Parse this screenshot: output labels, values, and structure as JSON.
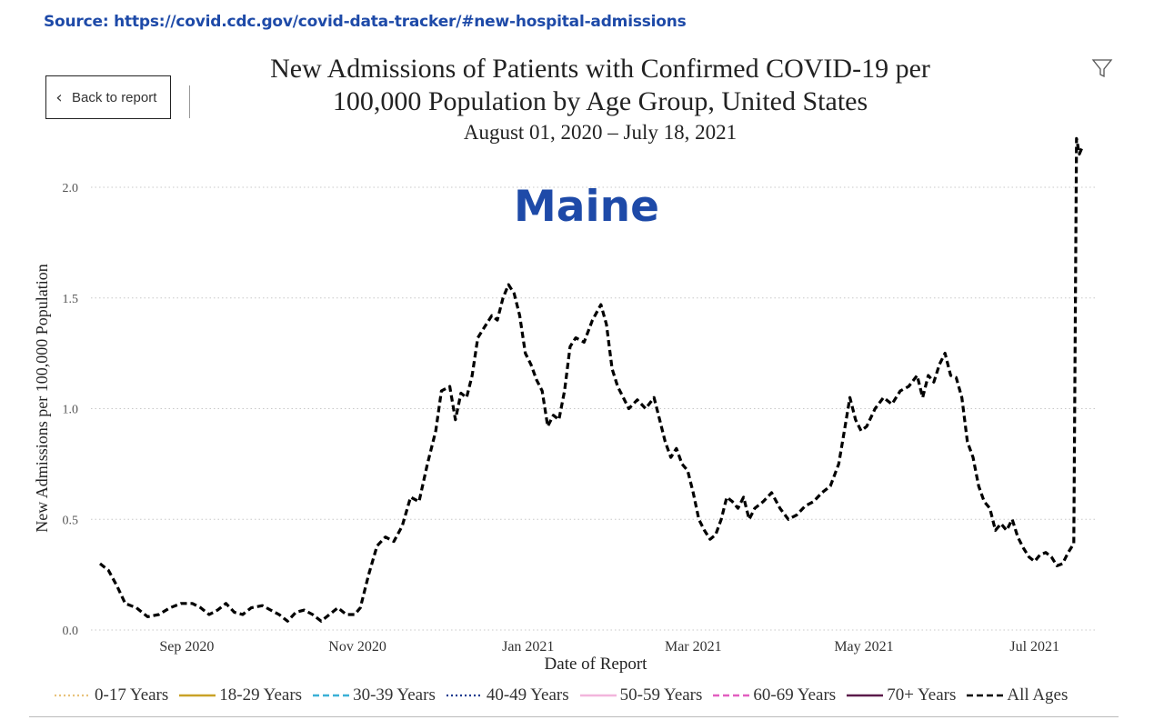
{
  "source_text": "Source: https://covid.cdc.gov/covid-data-tracker/#new-hospital-admissions",
  "back_button": {
    "label": "Back to report",
    "icon": "chevron-left-icon"
  },
  "filter_icon": "filter-icon",
  "state_label": "Maine",
  "chart_data": {
    "type": "line",
    "title_line1": "New Admissions of Patients with Confirmed COVID-19 per",
    "title_line2": "100,000 Population by Age Group, United States",
    "subtitle": "August 01, 2020 – July 18, 2021",
    "xlabel": "Date of Report",
    "ylabel": "New Admissions per 100,000 Population",
    "x_range": [
      "2020-08-01",
      "2021-07-18"
    ],
    "ylim": [
      0,
      2.2
    ],
    "yticks": [
      0.0,
      0.5,
      1.0,
      1.5,
      2.0
    ],
    "ytick_labels": [
      "0.0",
      "0.5",
      "1.0",
      "1.5",
      "2.0"
    ],
    "xticks": [
      "2020-09-01",
      "2020-11-01",
      "2021-01-01",
      "2021-03-01",
      "2021-05-01",
      "2021-07-01"
    ],
    "xtick_labels": [
      "Sep 2020",
      "Nov 2020",
      "Jan 2021",
      "Mar 2021",
      "May 2021",
      "Jul 2021"
    ],
    "grid": "horizontal-dotted",
    "legend_placement": "bottom",
    "legend": [
      {
        "name": "0-17 Years",
        "color": "#e8c27a",
        "dash": "dotted"
      },
      {
        "name": "18-29 Years",
        "color": "#c9a227",
        "dash": "solid"
      },
      {
        "name": "30-39 Years",
        "color": "#3bb0d6",
        "dash": "dashed"
      },
      {
        "name": "40-49 Years",
        "color": "#1b3a8f",
        "dash": "dotted"
      },
      {
        "name": "50-59 Years",
        "color": "#f2b5dc",
        "dash": "solid"
      },
      {
        "name": "60-69 Years",
        "color": "#e25fc0",
        "dash": "dashed"
      },
      {
        "name": "70+ Years",
        "color": "#5b1a4a",
        "dash": "solid"
      },
      {
        "name": "All Ages",
        "color": "#000000",
        "dash": "dashed"
      }
    ],
    "series": [
      {
        "name": "All Ages",
        "color": "#000000",
        "points": [
          [
            "2020-08-01",
            0.3
          ],
          [
            "2020-08-04",
            0.27
          ],
          [
            "2020-08-07",
            0.2
          ],
          [
            "2020-08-10",
            0.12
          ],
          [
            "2020-08-14",
            0.1
          ],
          [
            "2020-08-18",
            0.06
          ],
          [
            "2020-08-22",
            0.07
          ],
          [
            "2020-08-26",
            0.1
          ],
          [
            "2020-08-30",
            0.12
          ],
          [
            "2020-09-03",
            0.12
          ],
          [
            "2020-09-06",
            0.1
          ],
          [
            "2020-09-09",
            0.07
          ],
          [
            "2020-09-12",
            0.09
          ],
          [
            "2020-09-15",
            0.12
          ],
          [
            "2020-09-18",
            0.08
          ],
          [
            "2020-09-21",
            0.07
          ],
          [
            "2020-09-24",
            0.1
          ],
          [
            "2020-09-28",
            0.11
          ],
          [
            "2020-10-01",
            0.09
          ],
          [
            "2020-10-04",
            0.07
          ],
          [
            "2020-10-07",
            0.04
          ],
          [
            "2020-10-10",
            0.08
          ],
          [
            "2020-10-13",
            0.09
          ],
          [
            "2020-10-16",
            0.07
          ],
          [
            "2020-10-19",
            0.04
          ],
          [
            "2020-10-22",
            0.07
          ],
          [
            "2020-10-25",
            0.1
          ],
          [
            "2020-10-28",
            0.07
          ],
          [
            "2020-10-31",
            0.07
          ],
          [
            "2020-11-02",
            0.1
          ],
          [
            "2020-11-05",
            0.25
          ],
          [
            "2020-11-08",
            0.38
          ],
          [
            "2020-11-11",
            0.42
          ],
          [
            "2020-11-14",
            0.4
          ],
          [
            "2020-11-17",
            0.47
          ],
          [
            "2020-11-20",
            0.6
          ],
          [
            "2020-11-23",
            0.58
          ],
          [
            "2020-11-26",
            0.75
          ],
          [
            "2020-11-29",
            0.9
          ],
          [
            "2020-12-01",
            1.08
          ],
          [
            "2020-12-04",
            1.1
          ],
          [
            "2020-12-06",
            0.95
          ],
          [
            "2020-12-08",
            1.07
          ],
          [
            "2020-12-10",
            1.05
          ],
          [
            "2020-12-12",
            1.15
          ],
          [
            "2020-12-14",
            1.32
          ],
          [
            "2020-12-16",
            1.36
          ],
          [
            "2020-12-19",
            1.42
          ],
          [
            "2020-12-21",
            1.4
          ],
          [
            "2020-12-23",
            1.5
          ],
          [
            "2020-12-25",
            1.56
          ],
          [
            "2020-12-27",
            1.52
          ],
          [
            "2020-12-29",
            1.42
          ],
          [
            "2020-12-31",
            1.25
          ],
          [
            "2021-01-02",
            1.2
          ],
          [
            "2021-01-04",
            1.13
          ],
          [
            "2021-01-06",
            1.08
          ],
          [
            "2021-01-08",
            0.92
          ],
          [
            "2021-01-10",
            0.97
          ],
          [
            "2021-01-12",
            0.95
          ],
          [
            "2021-01-14",
            1.08
          ],
          [
            "2021-01-16",
            1.28
          ],
          [
            "2021-01-18",
            1.32
          ],
          [
            "2021-01-21",
            1.3
          ],
          [
            "2021-01-24",
            1.4
          ],
          [
            "2021-01-27",
            1.47
          ],
          [
            "2021-01-29",
            1.38
          ],
          [
            "2021-01-31",
            1.18
          ],
          [
            "2021-02-02",
            1.1
          ],
          [
            "2021-02-04",
            1.05
          ],
          [
            "2021-02-06",
            1.0
          ],
          [
            "2021-02-09",
            1.04
          ],
          [
            "2021-02-12",
            1.0
          ],
          [
            "2021-02-15",
            1.05
          ],
          [
            "2021-02-17",
            0.95
          ],
          [
            "2021-02-19",
            0.85
          ],
          [
            "2021-02-21",
            0.78
          ],
          [
            "2021-02-23",
            0.82
          ],
          [
            "2021-02-25",
            0.75
          ],
          [
            "2021-02-27",
            0.72
          ],
          [
            "2021-03-01",
            0.62
          ],
          [
            "2021-03-03",
            0.5
          ],
          [
            "2021-03-05",
            0.45
          ],
          [
            "2021-03-07",
            0.41
          ],
          [
            "2021-03-09",
            0.43
          ],
          [
            "2021-03-11",
            0.5
          ],
          [
            "2021-03-13",
            0.6
          ],
          [
            "2021-03-15",
            0.58
          ],
          [
            "2021-03-17",
            0.55
          ],
          [
            "2021-03-19",
            0.6
          ],
          [
            "2021-03-21",
            0.5
          ],
          [
            "2021-03-23",
            0.55
          ],
          [
            "2021-03-26",
            0.58
          ],
          [
            "2021-03-29",
            0.62
          ],
          [
            "2021-04-01",
            0.55
          ],
          [
            "2021-04-04",
            0.5
          ],
          [
            "2021-04-07",
            0.52
          ],
          [
            "2021-04-10",
            0.56
          ],
          [
            "2021-04-13",
            0.58
          ],
          [
            "2021-04-16",
            0.62
          ],
          [
            "2021-04-19",
            0.65
          ],
          [
            "2021-04-22",
            0.75
          ],
          [
            "2021-04-24",
            0.9
          ],
          [
            "2021-04-26",
            1.05
          ],
          [
            "2021-04-28",
            0.95
          ],
          [
            "2021-04-30",
            0.9
          ],
          [
            "2021-05-02",
            0.92
          ],
          [
            "2021-05-05",
            1.0
          ],
          [
            "2021-05-08",
            1.05
          ],
          [
            "2021-05-11",
            1.02
          ],
          [
            "2021-05-14",
            1.08
          ],
          [
            "2021-05-17",
            1.1
          ],
          [
            "2021-05-20",
            1.15
          ],
          [
            "2021-05-22",
            1.05
          ],
          [
            "2021-05-24",
            1.15
          ],
          [
            "2021-05-26",
            1.12
          ],
          [
            "2021-05-28",
            1.2
          ],
          [
            "2021-05-30",
            1.25
          ],
          [
            "2021-06-01",
            1.15
          ],
          [
            "2021-06-03",
            1.14
          ],
          [
            "2021-06-05",
            1.05
          ],
          [
            "2021-06-07",
            0.85
          ],
          [
            "2021-06-09",
            0.78
          ],
          [
            "2021-06-11",
            0.65
          ],
          [
            "2021-06-13",
            0.58
          ],
          [
            "2021-06-15",
            0.55
          ],
          [
            "2021-06-17",
            0.45
          ],
          [
            "2021-06-19",
            0.48
          ],
          [
            "2021-06-21",
            0.45
          ],
          [
            "2021-06-23",
            0.5
          ],
          [
            "2021-06-25",
            0.42
          ],
          [
            "2021-06-27",
            0.37
          ],
          [
            "2021-06-29",
            0.33
          ],
          [
            "2021-07-01",
            0.31
          ],
          [
            "2021-07-03",
            0.34
          ],
          [
            "2021-07-05",
            0.35
          ],
          [
            "2021-07-07",
            0.33
          ],
          [
            "2021-07-09",
            0.29
          ],
          [
            "2021-07-11",
            0.3
          ],
          [
            "2021-07-13",
            0.35
          ],
          [
            "2021-07-15",
            0.39
          ],
          [
            "2021-07-16",
            2.22
          ],
          [
            "2021-07-17",
            2.15
          ],
          [
            "2021-07-18",
            2.18
          ]
        ]
      }
    ]
  }
}
